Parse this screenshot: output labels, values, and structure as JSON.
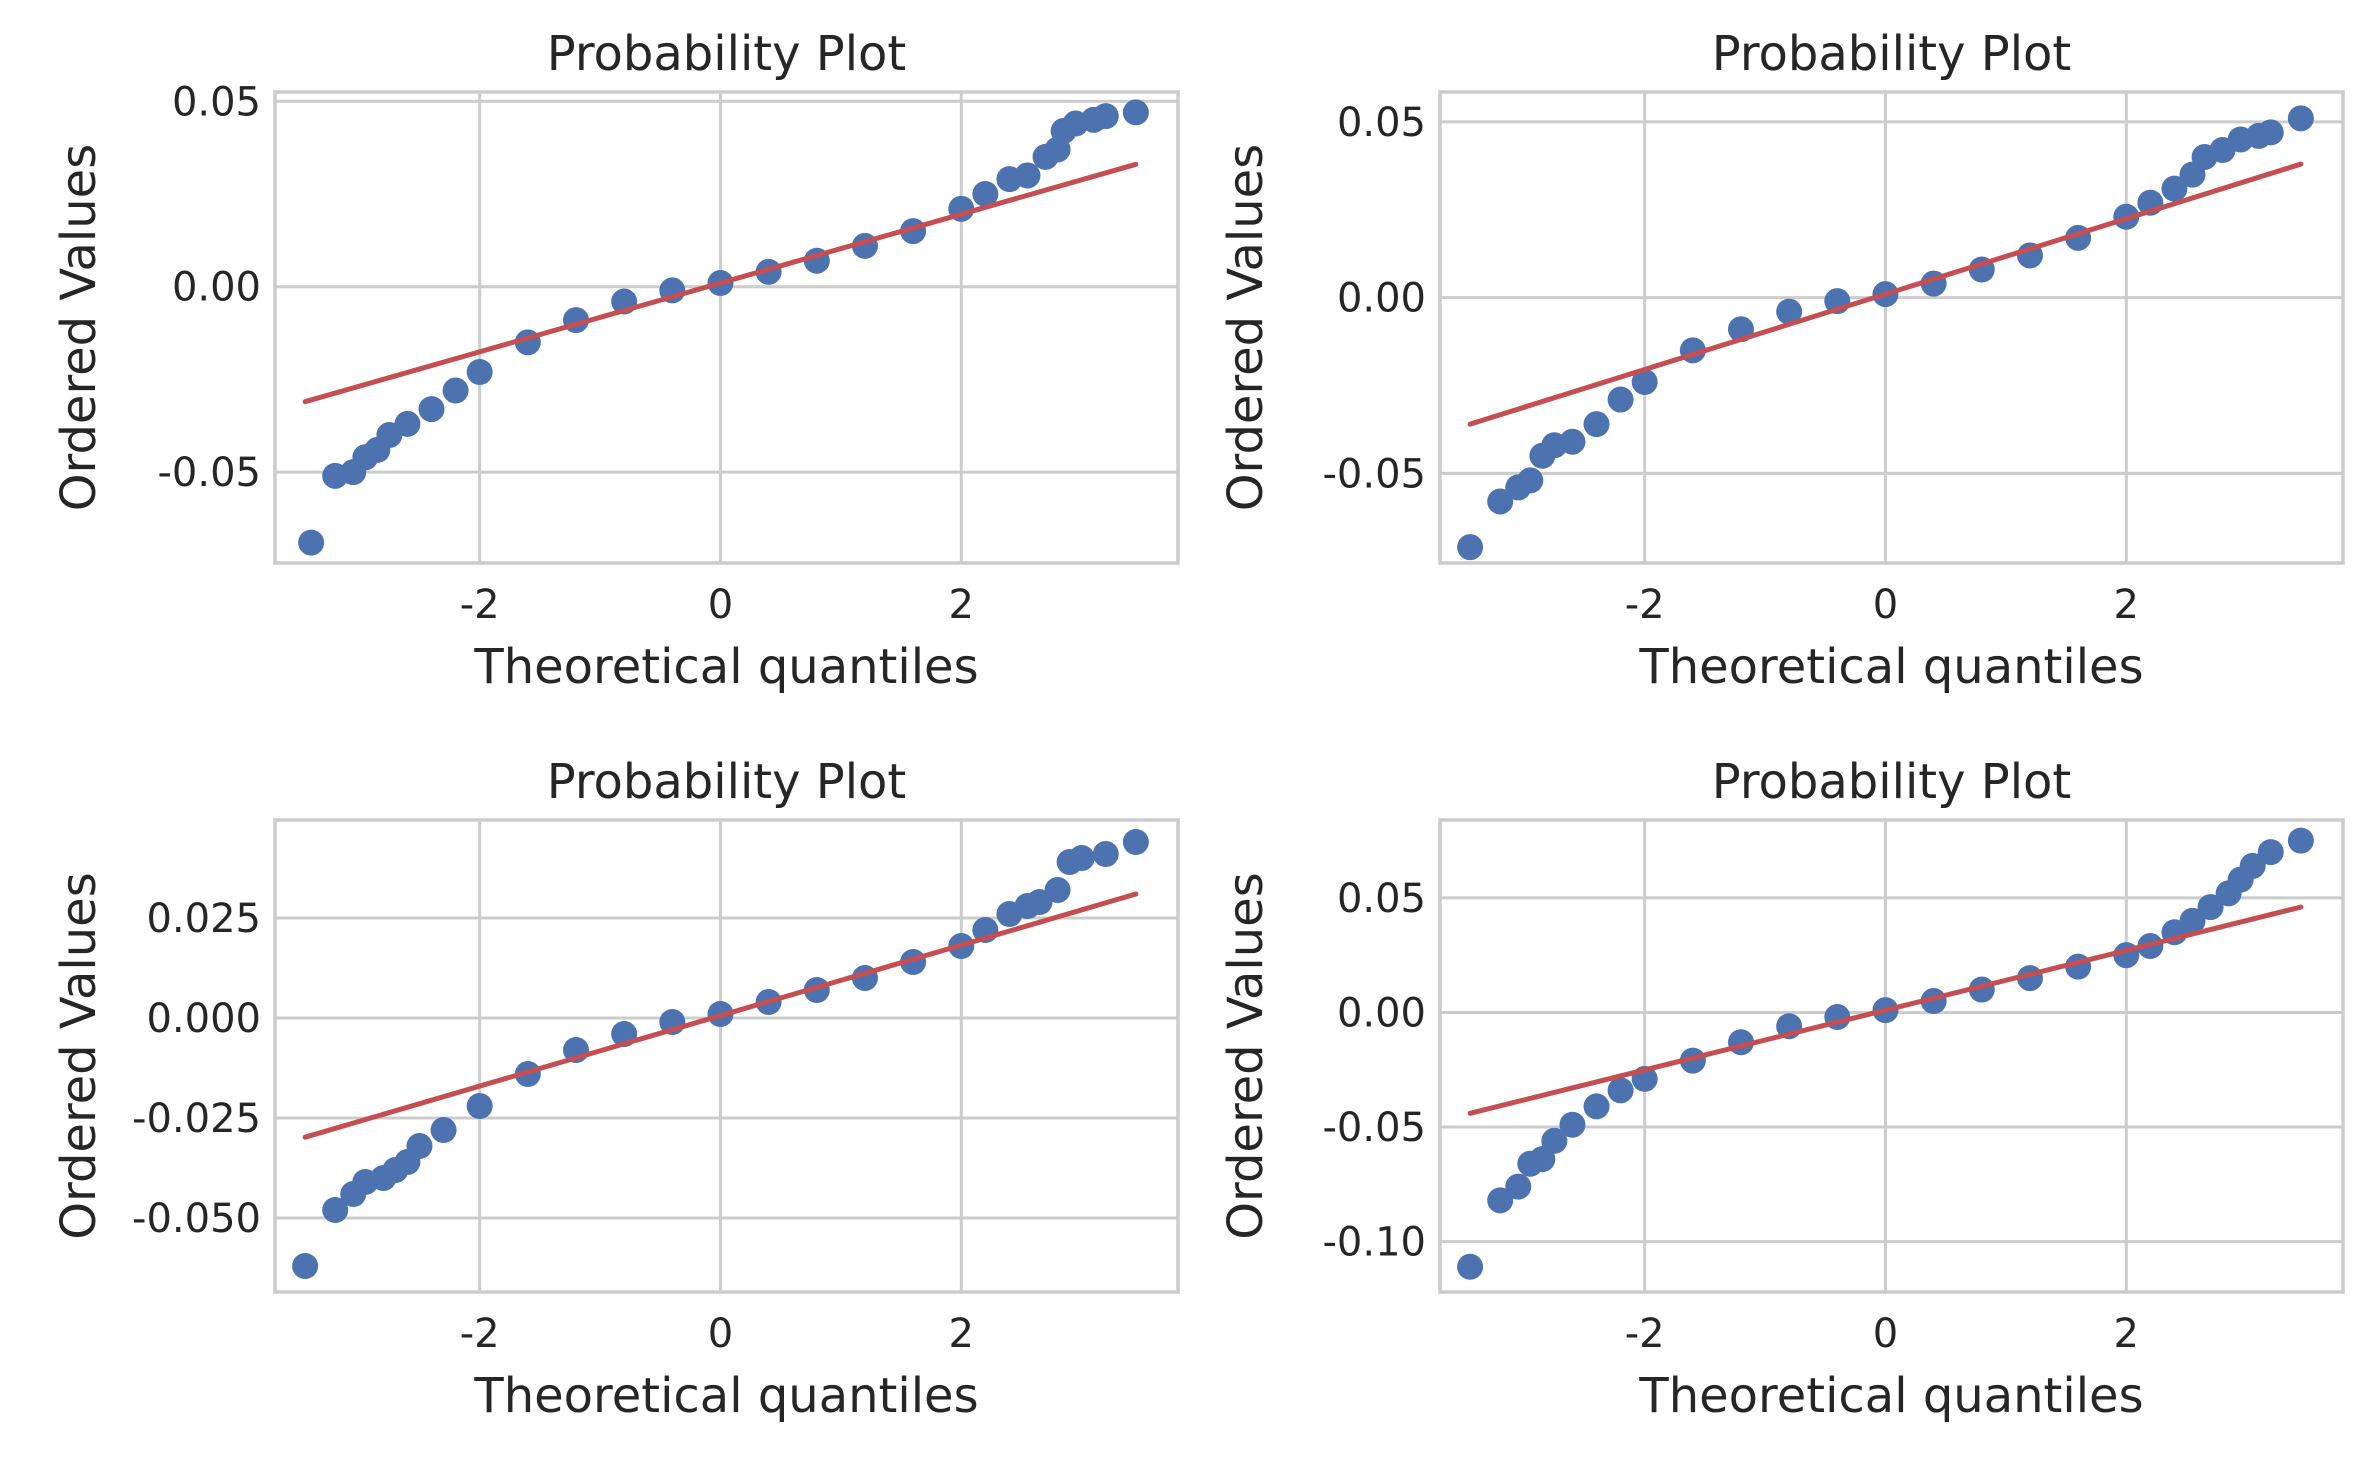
{
  "chart_data": [
    {
      "type": "scatter",
      "title": "Probability Plot",
      "xlabel": "Theoretical quantiles",
      "ylabel": "Ordered Values",
      "xlim": [
        -3.7,
        3.8
      ],
      "ylim": [
        -0.0745,
        0.0525
      ],
      "xticks": [
        {
          "v": -2,
          "label": "-2"
        },
        {
          "v": 0,
          "label": "0"
        },
        {
          "v": 2,
          "label": "2"
        }
      ],
      "yticks": [
        {
          "v": -0.05,
          "label": "-0.05"
        },
        {
          "v": 0.0,
          "label": "0.00"
        },
        {
          "v": 0.05,
          "label": "0.05"
        }
      ],
      "grid": true,
      "colors": {
        "points": "#4c72b0",
        "fit": "#c44e52"
      },
      "series": [
        {
          "values": [
            [
              -3.4,
              -0.069
            ],
            [
              -3.2,
              -0.051
            ],
            [
              -3.05,
              -0.05
            ],
            [
              -2.95,
              -0.046
            ],
            [
              -2.85,
              -0.044
            ],
            [
              -2.75,
              -0.04
            ],
            [
              -2.6,
              -0.037
            ],
            [
              -2.4,
              -0.033
            ],
            [
              -2.2,
              -0.028
            ],
            [
              -2.0,
              -0.023
            ],
            [
              -1.6,
              -0.015
            ],
            [
              -1.2,
              -0.009
            ],
            [
              -0.8,
              -0.004
            ],
            [
              -0.4,
              -0.001
            ],
            [
              0.0,
              0.001
            ],
            [
              0.4,
              0.004
            ],
            [
              0.8,
              0.007
            ],
            [
              1.2,
              0.011
            ],
            [
              1.6,
              0.015
            ],
            [
              2.0,
              0.021
            ],
            [
              2.2,
              0.025
            ],
            [
              2.4,
              0.029
            ],
            [
              2.55,
              0.03
            ],
            [
              2.7,
              0.035
            ],
            [
              2.8,
              0.037
            ],
            [
              2.85,
              0.042
            ],
            [
              2.95,
              0.044
            ],
            [
              3.1,
              0.045
            ],
            [
              3.2,
              0.046
            ],
            [
              3.45,
              0.047
            ]
          ]
        },
        {
          "values": [
            [
              -3.45,
              -0.031
            ],
            [
              3.45,
              0.033
            ]
          ]
        }
      ]
    },
    {
      "type": "scatter",
      "title": "Probability Plot",
      "xlabel": "Theoretical quantiles",
      "ylabel": "Ordered Values",
      "xlim": [
        -3.7,
        3.8
      ],
      "ylim": [
        -0.0755,
        0.0585
      ],
      "xticks": [
        {
          "v": -2,
          "label": "-2"
        },
        {
          "v": 0,
          "label": "0"
        },
        {
          "v": 2,
          "label": "2"
        }
      ],
      "yticks": [
        {
          "v": -0.05,
          "label": "-0.05"
        },
        {
          "v": 0.0,
          "label": "0.00"
        },
        {
          "v": 0.05,
          "label": "0.05"
        }
      ],
      "grid": true,
      "colors": {
        "points": "#4c72b0",
        "fit": "#c44e52"
      },
      "series": [
        {
          "values": [
            [
              -3.45,
              -0.071
            ],
            [
              -3.2,
              -0.058
            ],
            [
              -3.05,
              -0.054
            ],
            [
              -2.95,
              -0.052
            ],
            [
              -2.85,
              -0.045
            ],
            [
              -2.75,
              -0.042
            ],
            [
              -2.6,
              -0.041
            ],
            [
              -2.4,
              -0.036
            ],
            [
              -2.2,
              -0.029
            ],
            [
              -2.0,
              -0.024
            ],
            [
              -1.6,
              -0.015
            ],
            [
              -1.2,
              -0.009
            ],
            [
              -0.8,
              -0.004
            ],
            [
              -0.4,
              -0.001
            ],
            [
              0.0,
              0.001
            ],
            [
              0.4,
              0.004
            ],
            [
              0.8,
              0.008
            ],
            [
              1.2,
              0.012
            ],
            [
              1.6,
              0.017
            ],
            [
              2.0,
              0.023
            ],
            [
              2.2,
              0.027
            ],
            [
              2.4,
              0.031
            ],
            [
              2.55,
              0.035
            ],
            [
              2.65,
              0.04
            ],
            [
              2.8,
              0.042
            ],
            [
              2.95,
              0.045
            ],
            [
              3.1,
              0.046
            ],
            [
              3.2,
              0.047
            ],
            [
              3.45,
              0.051
            ]
          ]
        },
        {
          "values": [
            [
              -3.45,
              -0.036
            ],
            [
              3.45,
              0.038
            ]
          ]
        }
      ]
    },
    {
      "type": "scatter",
      "title": "Probability Plot",
      "xlabel": "Theoretical quantiles",
      "ylabel": "Ordered Values",
      "xlim": [
        -3.7,
        3.8
      ],
      "ylim": [
        -0.0685,
        0.0495
      ],
      "xticks": [
        {
          "v": -2,
          "label": "-2"
        },
        {
          "v": 0,
          "label": "0"
        },
        {
          "v": 2,
          "label": "2"
        }
      ],
      "yticks": [
        {
          "v": -0.05,
          "label": "-0.050"
        },
        {
          "v": -0.025,
          "label": "-0.025"
        },
        {
          "v": 0.0,
          "label": "0.000"
        },
        {
          "v": 0.025,
          "label": "0.025"
        }
      ],
      "grid": true,
      "colors": {
        "points": "#4c72b0",
        "fit": "#c44e52"
      },
      "series": [
        {
          "values": [
            [
              -3.45,
              -0.062
            ],
            [
              -3.2,
              -0.048
            ],
            [
              -3.05,
              -0.044
            ],
            [
              -2.95,
              -0.041
            ],
            [
              -2.8,
              -0.04
            ],
            [
              -2.7,
              -0.038
            ],
            [
              -2.6,
              -0.036
            ],
            [
              -2.5,
              -0.032
            ],
            [
              -2.3,
              -0.028
            ],
            [
              -2.0,
              -0.022
            ],
            [
              -1.6,
              -0.014
            ],
            [
              -1.2,
              -0.008
            ],
            [
              -0.8,
              -0.004
            ],
            [
              -0.4,
              -0.001
            ],
            [
              0.0,
              0.001
            ],
            [
              0.4,
              0.004
            ],
            [
              0.8,
              0.007
            ],
            [
              1.2,
              0.01
            ],
            [
              1.6,
              0.014
            ],
            [
              2.0,
              0.018
            ],
            [
              2.2,
              0.022
            ],
            [
              2.4,
              0.026
            ],
            [
              2.55,
              0.028
            ],
            [
              2.65,
              0.029
            ],
            [
              2.8,
              0.032
            ],
            [
              2.9,
              0.039
            ],
            [
              3.0,
              0.04
            ],
            [
              3.2,
              0.041
            ],
            [
              3.45,
              0.044
            ]
          ]
        },
        {
          "values": [
            [
              -3.45,
              -0.0298
            ],
            [
              3.45,
              0.031
            ]
          ]
        }
      ]
    },
    {
      "type": "scatter",
      "title": "Probability Plot",
      "xlabel": "Theoretical quantiles",
      "ylabel": "Ordered Values",
      "xlim": [
        -3.7,
        3.8
      ],
      "ylim": [
        -0.122,
        0.084
      ],
      "xticks": [
        {
          "v": -2,
          "label": "-2"
        },
        {
          "v": 0,
          "label": "0"
        },
        {
          "v": 2,
          "label": "2"
        }
      ],
      "yticks": [
        {
          "v": -0.1,
          "label": "-0.10"
        },
        {
          "v": -0.05,
          "label": "-0.05"
        },
        {
          "v": 0.0,
          "label": "0.00"
        },
        {
          "v": 0.05,
          "label": "0.05"
        }
      ],
      "grid": true,
      "colors": {
        "points": "#4c72b0",
        "fit": "#c44e52"
      },
      "series": [
        {
          "values": [
            [
              -3.45,
              -0.111
            ],
            [
              -3.2,
              -0.082
            ],
            [
              -3.05,
              -0.076
            ],
            [
              -2.95,
              -0.066
            ],
            [
              -2.85,
              -0.064
            ],
            [
              -2.75,
              -0.056
            ],
            [
              -2.6,
              -0.049
            ],
            [
              -2.4,
              -0.041
            ],
            [
              -2.2,
              -0.034
            ],
            [
              -2.0,
              -0.029
            ],
            [
              -1.6,
              -0.021
            ],
            [
              -1.2,
              -0.013
            ],
            [
              -0.8,
              -0.006
            ],
            [
              -0.4,
              -0.002
            ],
            [
              0.0,
              0.001
            ],
            [
              0.4,
              0.005
            ],
            [
              0.8,
              0.01
            ],
            [
              1.2,
              0.015
            ],
            [
              1.6,
              0.02
            ],
            [
              2.0,
              0.025
            ],
            [
              2.2,
              0.029
            ],
            [
              2.4,
              0.035
            ],
            [
              2.55,
              0.04
            ],
            [
              2.7,
              0.046
            ],
            [
              2.85,
              0.052
            ],
            [
              2.95,
              0.058
            ],
            [
              3.05,
              0.064
            ],
            [
              3.2,
              0.07
            ],
            [
              3.45,
              0.075
            ]
          ]
        },
        {
          "values": [
            [
              -3.45,
              -0.044
            ],
            [
              3.45,
              0.046
            ]
          ]
        }
      ]
    }
  ]
}
